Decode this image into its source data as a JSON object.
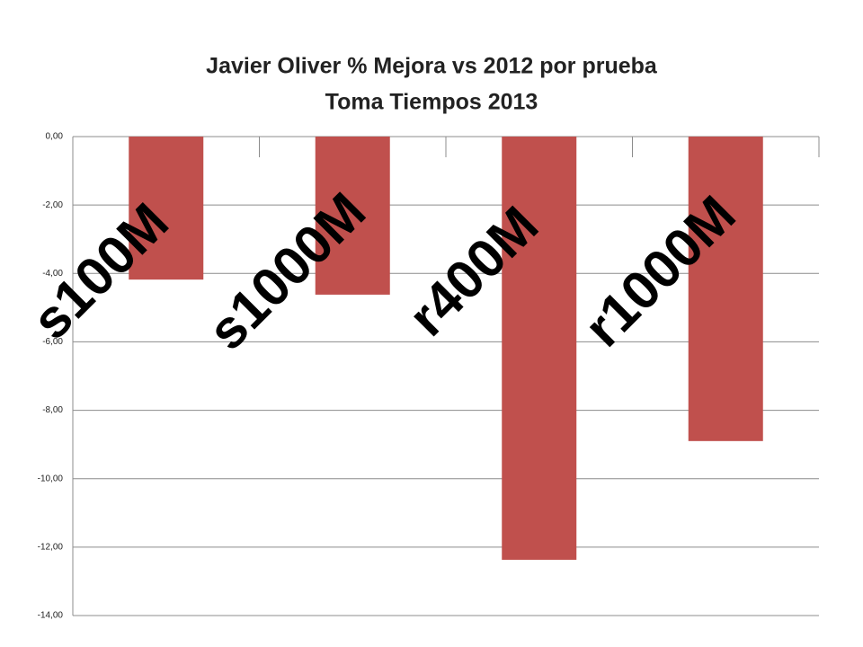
{
  "chart_data": {
    "type": "bar",
    "title": "Javier Oliver % Mejora vs 2012 por prueba",
    "subtitle": "Toma Tiempos 2013",
    "categories": [
      "s100M",
      "s1000M",
      "r400M",
      "r1000M"
    ],
    "values": [
      -4.18,
      -4.62,
      -12.37,
      -8.9
    ],
    "color": "#c0504d",
    "ylim": [
      -14,
      0
    ],
    "yticks": [
      {
        "value": 0,
        "label": "0,00"
      },
      {
        "value": -2,
        "label": "-2,00"
      },
      {
        "value": -4,
        "label": "-4,00"
      },
      {
        "value": -6,
        "label": "-6,00"
      },
      {
        "value": -8,
        "label": "-8,00"
      },
      {
        "value": -10,
        "label": "-10,00"
      },
      {
        "value": -12,
        "label": "-12,00"
      },
      {
        "value": -14,
        "label": "-14,00"
      }
    ],
    "grid": true
  }
}
